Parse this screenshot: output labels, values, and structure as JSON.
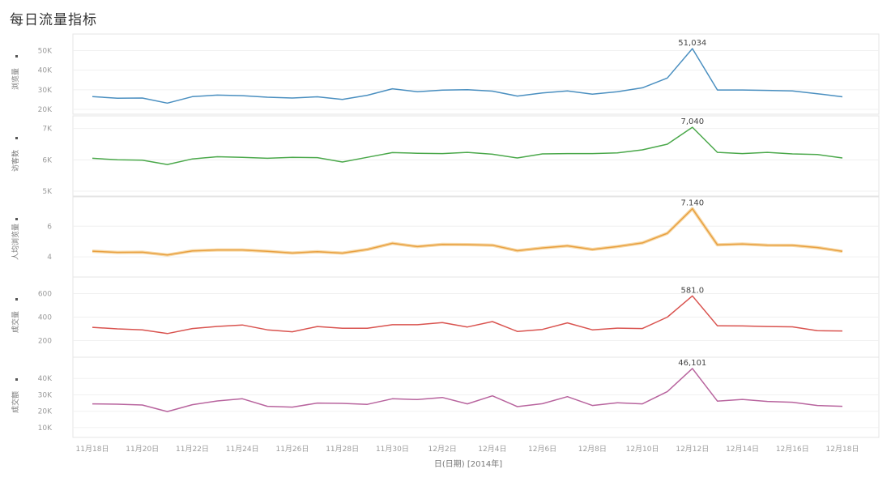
{
  "page": {
    "title": "每日流量指标"
  },
  "chart_data": {
    "type": "line",
    "x_axis": {
      "label": "日(日期) [2014年]",
      "ticks": [
        "11月18日",
        "11月20日",
        "11月22日",
        "11月24日",
        "11月26日",
        "11月28日",
        "11月30日",
        "12月2日",
        "12月4日",
        "12月6日",
        "12月8日",
        "12月10日",
        "12月12日",
        "12月14日",
        "12月16日",
        "12月18日"
      ]
    },
    "x": [
      "11-18",
      "11-19",
      "11-20",
      "11-21",
      "11-22",
      "11-23",
      "11-24",
      "11-25",
      "11-26",
      "11-27",
      "11-28",
      "11-29",
      "11-30",
      "12-01",
      "12-02",
      "12-03",
      "12-04",
      "12-05",
      "12-06",
      "12-07",
      "12-08",
      "12-09",
      "12-10",
      "12-11",
      "12-12",
      "12-13",
      "12-14",
      "12-15",
      "12-16",
      "12-17",
      "12-18"
    ],
    "panels": [
      {
        "ylabel": "浏览量",
        "color": "#4a8fc0",
        "yticks": [
          {
            "v": 30000,
            "t": "30K"
          },
          {
            "v": 40000,
            "t": "40K"
          },
          {
            "v": 50000,
            "t": "50K"
          }
        ],
        "bottom_tick": {
          "v": 20000,
          "t": "20K"
        },
        "ylim": [
          20000,
          56000
        ],
        "values": [
          26500,
          25700,
          25800,
          23200,
          26500,
          27300,
          27000,
          26200,
          25800,
          26400,
          25100,
          27200,
          30500,
          29000,
          29800,
          30000,
          29300,
          26800,
          28400,
          29400,
          27800,
          29000,
          31000,
          36000,
          51034,
          29900,
          29900,
          29700,
          29400,
          28000,
          26400
        ],
        "peak_label": "51,034"
      },
      {
        "ylabel": "访客数",
        "color": "#4aa84a",
        "yticks": [
          {
            "v": 7000,
            "t": "7K"
          },
          {
            "v": 6000,
            "t": "6K"
          }
        ],
        "bottom_tick": {
          "v": 5000,
          "t": "5K"
        },
        "ylim": [
          5000,
          7250
        ],
        "values": [
          6050,
          6000,
          5990,
          5850,
          6030,
          6100,
          6080,
          6050,
          6080,
          6070,
          5930,
          6080,
          6230,
          6210,
          6200,
          6240,
          6180,
          6060,
          6190,
          6200,
          6200,
          6220,
          6320,
          6500,
          7040,
          6240,
          6200,
          6240,
          6190,
          6170,
          6060
        ],
        "peak_label": "7,040"
      },
      {
        "ylabel": "人均浏览量",
        "color": "#e8a040",
        "yticks": [
          {
            "v": 6,
            "t": "6"
          },
          {
            "v": 4,
            "t": "4"
          }
        ],
        "ylim": [
          3.0,
          7.6
        ],
        "values": [
          4.37,
          4.29,
          4.3,
          4.12,
          4.39,
          4.45,
          4.45,
          4.36,
          4.25,
          4.34,
          4.24,
          4.48,
          4.88,
          4.67,
          4.81,
          4.8,
          4.76,
          4.4,
          4.58,
          4.72,
          4.48,
          4.67,
          4.91,
          5.54,
          7.14,
          4.78,
          4.84,
          4.76,
          4.75,
          4.61,
          4.36
        ],
        "peak_label": "7.140"
      },
      {
        "ylabel": "成交量",
        "color": "#d9534f",
        "yticks": [
          {
            "v": 600,
            "t": "600"
          },
          {
            "v": 400,
            "t": "400"
          },
          {
            "v": 200,
            "t": "200"
          }
        ],
        "ylim": [
          100,
          700
        ],
        "values": [
          313,
          300,
          292,
          260,
          303,
          321,
          333,
          292,
          275,
          320,
          305,
          305,
          335,
          335,
          353,
          316,
          362,
          278,
          295,
          351,
          292,
          306,
          303,
          400,
          581,
          326,
          325,
          320,
          317,
          284,
          282
        ],
        "peak_label": "581.0"
      },
      {
        "ylabel": "成交额",
        "color": "#b8649e",
        "yticks": [
          {
            "v": 40000,
            "t": "40K"
          },
          {
            "v": 30000,
            "t": "30K"
          },
          {
            "v": 20000,
            "t": "20K"
          },
          {
            "v": 10000,
            "t": "10K"
          }
        ],
        "ylim": [
          7000,
          50000
        ],
        "values": [
          24500,
          24300,
          23800,
          19800,
          24000,
          26300,
          27600,
          23000,
          22500,
          25000,
          24800,
          24200,
          27600,
          27100,
          28400,
          24500,
          29400,
          22800,
          24600,
          28900,
          23500,
          25200,
          24500,
          32000,
          46101,
          26200,
          27200,
          26000,
          25500,
          23500,
          23000
        ],
        "peak_label": "46,101"
      }
    ]
  }
}
